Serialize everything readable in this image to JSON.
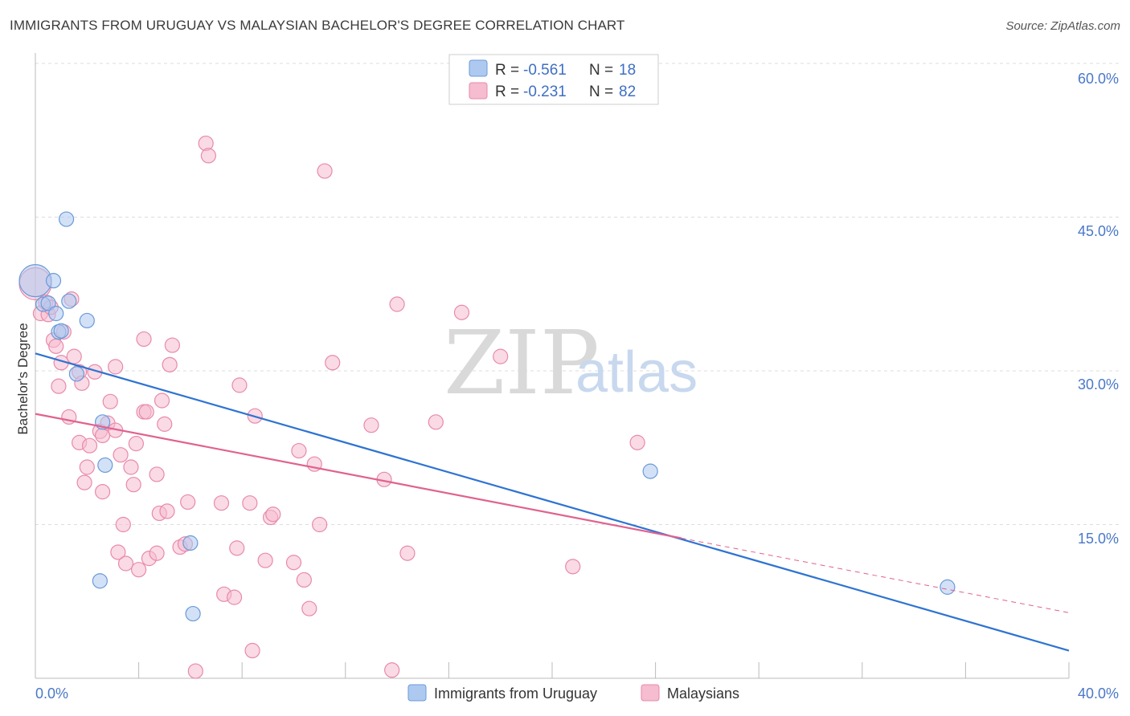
{
  "header": {
    "title": "IMMIGRANTS FROM URUGUAY VS MALAYSIAN BACHELOR'S DEGREE CORRELATION CHART",
    "source": "Source: ZipAtlas.com"
  },
  "watermark": {
    "zip": "ZIP",
    "atlas": "atlas"
  },
  "colors": {
    "blue_fill": "#aec9f0",
    "blue_stroke": "#6a9ad8",
    "blue_line": "#2e73d2",
    "pink_fill": "#f6bcd0",
    "pink_stroke": "#e88aaa",
    "pink_line": "#e0628f",
    "grid": "#dddddd"
  },
  "legend": {
    "rows": [
      {
        "r_label": "R =",
        "r_value": "-0.561",
        "n_label": "N =",
        "n_value": "18"
      },
      {
        "r_label": "R =",
        "r_value": "-0.231",
        "n_label": "N =",
        "n_value": "82"
      }
    ]
  },
  "chart_data": {
    "type": "scatter",
    "title": "IMMIGRANTS FROM URUGUAY VS MALAYSIAN BACHELOR'S DEGREE CORRELATION CHART",
    "xlabel": "",
    "ylabel": "Bachelor's Degree",
    "xlim": [
      0,
      40
    ],
    "ylim": [
      0,
      60
    ],
    "x_tick_labels": [
      "0.0%",
      "40.0%"
    ],
    "y_ticks": [
      15,
      30,
      45,
      60
    ],
    "y_tick_labels": [
      "15.0%",
      "30.0%",
      "45.0%",
      "60.0%"
    ],
    "grid": "horizontal-dashed",
    "legend_position": "bottom-center",
    "series": [
      {
        "name": "Immigrants from Uruguay",
        "color": "#aec9f0",
        "trend": {
          "x0": 0,
          "y0": 31.7,
          "x1": 40,
          "y1": 2.7,
          "dashed_from": null
        },
        "points": [
          {
            "x": 0.0,
            "y": 38.8,
            "big": true
          },
          {
            "x": 0.3,
            "y": 36.5
          },
          {
            "x": 0.5,
            "y": 36.6
          },
          {
            "x": 0.7,
            "y": 38.8
          },
          {
            "x": 0.8,
            "y": 35.6
          },
          {
            "x": 0.9,
            "y": 33.8
          },
          {
            "x": 1.0,
            "y": 33.9
          },
          {
            "x": 1.2,
            "y": 44.8
          },
          {
            "x": 1.3,
            "y": 36.8
          },
          {
            "x": 1.6,
            "y": 29.7
          },
          {
            "x": 2.0,
            "y": 34.9
          },
          {
            "x": 2.6,
            "y": 25.0
          },
          {
            "x": 2.7,
            "y": 20.8
          },
          {
            "x": 2.5,
            "y": 9.5
          },
          {
            "x": 6.0,
            "y": 13.2
          },
          {
            "x": 6.1,
            "y": 6.3
          },
          {
            "x": 23.8,
            "y": 20.2
          },
          {
            "x": 35.3,
            "y": 8.9
          }
        ]
      },
      {
        "name": "Malaysians",
        "color": "#f6bcd0",
        "trend": {
          "x0": 0,
          "y0": 25.8,
          "x1": 40,
          "y1": 6.4,
          "dashed_from": 25.0
        },
        "points": [
          {
            "x": 0.0,
            "y": 38.5,
            "big": true
          },
          {
            "x": 0.2,
            "y": 35.6
          },
          {
            "x": 0.4,
            "y": 36.7
          },
          {
            "x": 0.5,
            "y": 35.5
          },
          {
            "x": 0.6,
            "y": 36.2
          },
          {
            "x": 0.7,
            "y": 33.0
          },
          {
            "x": 0.8,
            "y": 32.4
          },
          {
            "x": 0.9,
            "y": 28.5
          },
          {
            "x": 1.0,
            "y": 30.8
          },
          {
            "x": 1.1,
            "y": 33.8
          },
          {
            "x": 1.3,
            "y": 25.5
          },
          {
            "x": 1.4,
            "y": 37.0
          },
          {
            "x": 1.5,
            "y": 31.4
          },
          {
            "x": 1.7,
            "y": 29.9
          },
          {
            "x": 1.8,
            "y": 28.8
          },
          {
            "x": 1.7,
            "y": 23.0
          },
          {
            "x": 1.9,
            "y": 19.1
          },
          {
            "x": 2.0,
            "y": 20.6
          },
          {
            "x": 2.1,
            "y": 22.7
          },
          {
            "x": 2.3,
            "y": 29.9
          },
          {
            "x": 2.5,
            "y": 24.1
          },
          {
            "x": 2.6,
            "y": 23.7
          },
          {
            "x": 2.6,
            "y": 18.2
          },
          {
            "x": 2.8,
            "y": 24.9
          },
          {
            "x": 2.9,
            "y": 27.0
          },
          {
            "x": 3.1,
            "y": 30.4
          },
          {
            "x": 3.1,
            "y": 24.2
          },
          {
            "x": 3.2,
            "y": 12.3
          },
          {
            "x": 3.3,
            "y": 21.8
          },
          {
            "x": 3.4,
            "y": 15.0
          },
          {
            "x": 3.5,
            "y": 11.2
          },
          {
            "x": 3.7,
            "y": 20.6
          },
          {
            "x": 3.8,
            "y": 18.9
          },
          {
            "x": 3.9,
            "y": 22.9
          },
          {
            "x": 4.0,
            "y": 10.6
          },
          {
            "x": 4.2,
            "y": 26.0
          },
          {
            "x": 4.3,
            "y": 26.0
          },
          {
            "x": 4.2,
            "y": 33.1
          },
          {
            "x": 4.4,
            "y": 11.7
          },
          {
            "x": 4.7,
            "y": 19.9
          },
          {
            "x": 4.7,
            "y": 12.2
          },
          {
            "x": 4.8,
            "y": 16.1
          },
          {
            "x": 4.9,
            "y": 27.1
          },
          {
            "x": 5.0,
            "y": 24.8
          },
          {
            "x": 5.1,
            "y": 16.3
          },
          {
            "x": 5.2,
            "y": 30.6
          },
          {
            "x": 5.3,
            "y": 32.5
          },
          {
            "x": 5.6,
            "y": 12.8
          },
          {
            "x": 5.8,
            "y": 13.1
          },
          {
            "x": 5.9,
            "y": 17.2
          },
          {
            "x": 6.2,
            "y": 0.7
          },
          {
            "x": 6.6,
            "y": 52.2
          },
          {
            "x": 6.7,
            "y": 51.0
          },
          {
            "x": 7.2,
            "y": 17.1
          },
          {
            "x": 7.3,
            "y": 8.2
          },
          {
            "x": 7.7,
            "y": 7.9
          },
          {
            "x": 7.8,
            "y": 12.7
          },
          {
            "x": 7.9,
            "y": 28.6
          },
          {
            "x": 8.3,
            "y": 17.1
          },
          {
            "x": 8.4,
            "y": 2.7
          },
          {
            "x": 8.5,
            "y": 25.6
          },
          {
            "x": 8.9,
            "y": 11.5
          },
          {
            "x": 9.1,
            "y": 15.7
          },
          {
            "x": 9.2,
            "y": 16.0
          },
          {
            "x": 10.0,
            "y": 11.3
          },
          {
            "x": 10.2,
            "y": 22.2
          },
          {
            "x": 10.4,
            "y": 9.6
          },
          {
            "x": 10.6,
            "y": 6.8
          },
          {
            "x": 10.8,
            "y": 20.9
          },
          {
            "x": 11.0,
            "y": 15.0
          },
          {
            "x": 11.2,
            "y": 49.5
          },
          {
            "x": 11.5,
            "y": 30.8
          },
          {
            "x": 13.0,
            "y": 24.7
          },
          {
            "x": 13.5,
            "y": 19.4
          },
          {
            "x": 13.8,
            "y": 0.8
          },
          {
            "x": 14.0,
            "y": 36.5
          },
          {
            "x": 14.4,
            "y": 12.2
          },
          {
            "x": 15.5,
            "y": 25.0
          },
          {
            "x": 16.5,
            "y": 35.7
          },
          {
            "x": 18.0,
            "y": 31.4
          },
          {
            "x": 20.8,
            "y": 10.9
          },
          {
            "x": 23.3,
            "y": 23.0
          }
        ]
      }
    ]
  }
}
